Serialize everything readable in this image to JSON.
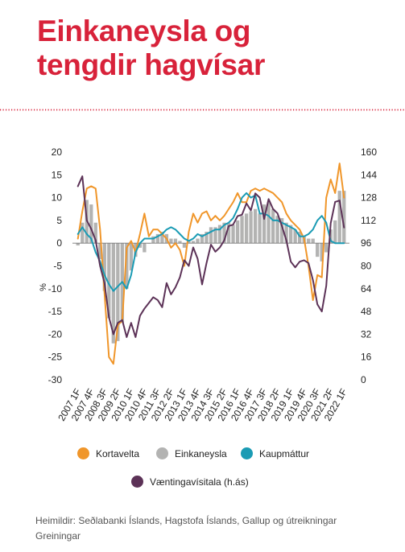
{
  "title": {
    "line1": "Einkaneysla og",
    "line2": "tengdir hagvísar"
  },
  "source": "Heimildir: Seðlabanki Íslands, Hagstofa Íslands, Gallup og útreikningar Greiningar",
  "colors": {
    "title": "#d8223a",
    "kortavelta": "#f0962a",
    "einkaneysla": "#b3b3b2",
    "kaupmattur": "#1a9bb4",
    "vaentingavisitala": "#5c3257",
    "divider": "#d8223a"
  },
  "chart_data": {
    "type": "bar+line",
    "y_left": {
      "label": "%",
      "ticks": [
        20,
        15,
        10,
        5,
        0,
        -5,
        -10,
        -15,
        -20,
        -25,
        -30
      ],
      "range": [
        -30,
        20
      ]
    },
    "y_right": {
      "ticks": [
        160,
        144,
        128,
        112,
        96,
        80,
        64,
        48,
        32,
        16,
        0
      ],
      "range": [
        0,
        160
      ]
    },
    "x_tick_labels": [
      "2007 1F",
      "2007 4F",
      "2008 3F",
      "2009 2F",
      "2010 1F",
      "2010 4F",
      "2011 3F",
      "2012 2F",
      "2013 1F",
      "2013 4F",
      "2014 3F",
      "2015 2F",
      "2016 1F",
      "2016 4F",
      "2017 3F",
      "2018 2F",
      "2019 1F",
      "2019 4F",
      "2020 3F",
      "2021 2F",
      "2022 1F"
    ],
    "x_start": "2007 1F",
    "quarters": 61,
    "legend": [
      "Kortavelta",
      "Einkaneysla",
      "Kaupmáttur",
      "Væntingavísitala (h.ás)"
    ],
    "series": [
      {
        "name": "Einkaneysla",
        "type": "bar",
        "axis": "left",
        "values": [
          -0.5,
          4.5,
          9.5,
          8.5,
          4.5,
          -3.5,
          -10.5,
          -16.5,
          -22,
          -21.5,
          -17.5,
          -10,
          -6,
          -3,
          -1,
          -2,
          0,
          1.5,
          2,
          2.5,
          2,
          1,
          1,
          0.5,
          -1,
          0.5,
          0.5,
          1,
          2,
          2.5,
          3.5,
          3.5,
          4,
          4.5,
          4.5,
          4,
          5,
          6,
          6.5,
          7,
          7.5,
          6.5,
          8.5,
          9,
          7.5,
          6,
          5.5,
          4.5,
          4,
          3,
          2.5,
          1.5,
          1,
          1,
          -3,
          -4,
          -2,
          3,
          5,
          11.5,
          11.5
        ]
      },
      {
        "name": "Kortavelta",
        "type": "line",
        "axis": "left",
        "values": [
          1,
          7,
          12,
          12.5,
          12,
          3,
          -11,
          -25,
          -26.5,
          -18,
          -17,
          -1,
          0.5,
          -2,
          2,
          6.5,
          1.5,
          3,
          3,
          2,
          1,
          -1,
          0,
          -1.5,
          -5,
          2.5,
          6.5,
          4.5,
          6.5,
          7,
          5,
          6,
          5,
          6,
          7.5,
          9,
          11,
          9,
          9,
          11.5,
          12,
          11.5,
          12,
          11.5,
          11,
          10,
          9,
          6.5,
          5,
          4,
          3,
          1,
          -5,
          -12.5,
          -7,
          -7.5,
          10,
          14,
          11,
          17.5,
          10
        ]
      },
      {
        "name": "Kaupmáttur",
        "type": "line",
        "axis": "left",
        "values": [
          2,
          3.5,
          2,
          1,
          -2,
          -4,
          -7,
          -9,
          -10.5,
          -9.5,
          -8.5,
          -10,
          -7,
          -2,
          0,
          1,
          1,
          1,
          1.5,
          2,
          3,
          3.5,
          3,
          2,
          1,
          0.5,
          1,
          2,
          1.5,
          2,
          2.5,
          3,
          3,
          4,
          4.5,
          5.5,
          7.5,
          10,
          11,
          10,
          10.5,
          6.5,
          6.5,
          6,
          5,
          5,
          4.5,
          4,
          3.5,
          3,
          1.5,
          1.5,
          2,
          3,
          5,
          6,
          4.5,
          0.5,
          0,
          0,
          0
        ]
      },
      {
        "name": "Væntingavísitala (h.ás)",
        "type": "line",
        "axis": "right",
        "values": [
          136,
          143,
          112,
          106,
          98,
          80,
          68,
          44,
          32,
          40,
          42,
          30,
          40,
          30,
          45,
          50,
          54,
          58,
          56,
          51,
          68,
          60,
          65,
          72,
          84,
          80,
          93,
          85,
          67,
          82,
          95,
          90,
          93,
          98,
          108,
          109,
          115,
          116,
          124,
          119,
          131,
          128,
          113,
          127,
          120,
          117,
          108,
          98,
          83,
          79,
          83,
          84,
          82,
          70,
          53,
          48,
          66,
          110,
          125,
          126,
          107
        ]
      }
    ]
  }
}
